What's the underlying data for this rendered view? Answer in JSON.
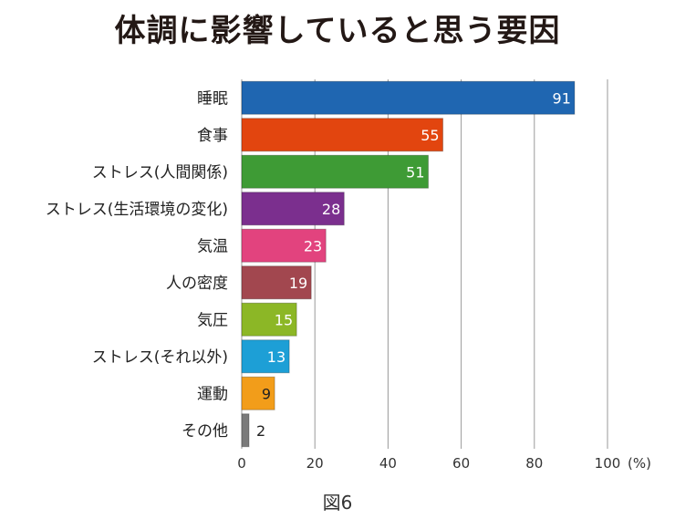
{
  "title": "体調に影響していると思う要因",
  "caption": "図6",
  "chart_data": {
    "type": "bar",
    "orientation": "horizontal",
    "title": "体調に影響していると思う要因",
    "xlabel": "",
    "ylabel": "",
    "unit": "(%)",
    "xlim": [
      0,
      100
    ],
    "xticks": [
      0,
      20,
      40,
      60,
      80,
      100
    ],
    "grid": true,
    "categories": [
      "睡眠",
      "食事",
      "ストレス(人間関係)",
      "ストレス(生活環境の変化)",
      "気温",
      "人の密度",
      "気圧",
      "ストレス(それ以外)",
      "運動",
      "その他"
    ],
    "values": [
      91,
      55,
      51,
      28,
      23,
      19,
      15,
      13,
      9,
      2
    ],
    "colors": [
      "#1f66b1",
      "#e2450f",
      "#3e9b35",
      "#7b2f8e",
      "#e2437e",
      "#a2474f",
      "#8cb726",
      "#1d9fd6",
      "#f29d1a",
      "#7a7a7a"
    ],
    "label_colors": [
      "#ffffff",
      "#ffffff",
      "#ffffff",
      "#ffffff",
      "#ffffff",
      "#ffffff",
      "#ffffff",
      "#ffffff",
      "#222222",
      "#222222"
    ]
  }
}
